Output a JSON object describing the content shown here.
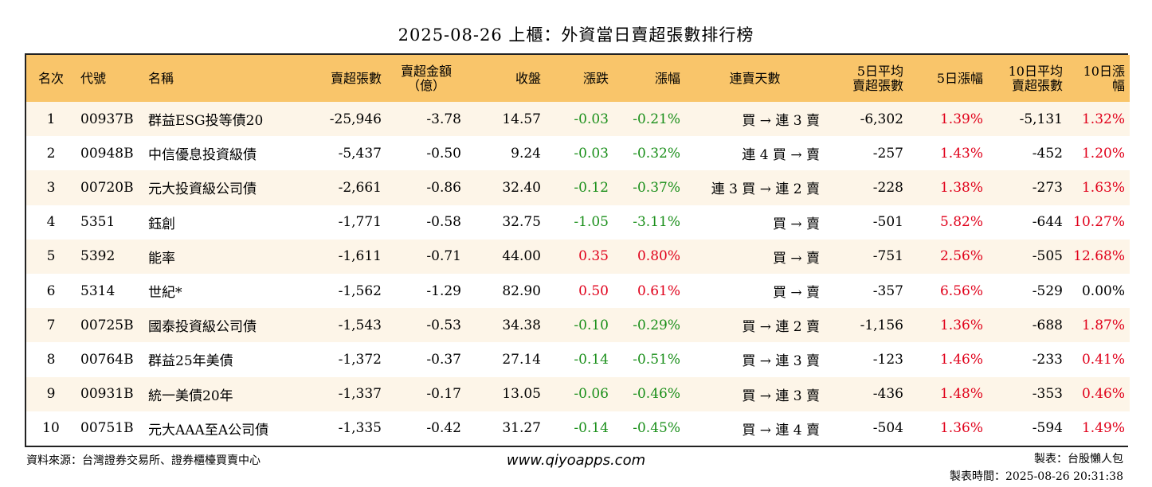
{
  "title": "2025-08-26 上櫃：外資當日賣超張數排行榜",
  "colors": {
    "header_bg": "#f9c56a",
    "row_alt": "#fdf5e8",
    "up": "#e0001a",
    "down": "#1a8f1a"
  },
  "headers": {
    "rank": "名次",
    "code": "代號",
    "name": "名稱",
    "net_sell_shares": "賣超張數",
    "net_sell_amount_l1": "賣超金額",
    "net_sell_amount_l2": "（億）",
    "close": "收盤",
    "change": "漲跌",
    "change_pct": "漲幅",
    "streak": "連賣天數",
    "avg5_l1": "5日平均",
    "avg5_l2": "賣超張數",
    "pct5": "5日漲幅",
    "avg10_l1": "10日平均",
    "avg10_l2": "賣超張數",
    "pct10": "10日漲幅"
  },
  "rows": [
    {
      "rank": "1",
      "code": "00937B",
      "name": "群益ESG投等債20",
      "shares": "-25,946",
      "amount": "-3.78",
      "close": "14.57",
      "change": "-0.03",
      "change_pct": "-0.21%",
      "streak": "買 → 連 3 賣",
      "avg5": "-6,302",
      "pct5": "1.39%",
      "avg10": "-5,131",
      "pct10": "1.32%",
      "dir": "down",
      "pct10_dir": "up"
    },
    {
      "rank": "2",
      "code": "00948B",
      "name": "中信優息投資級債",
      "shares": "-5,437",
      "amount": "-0.50",
      "close": "9.24",
      "change": "-0.03",
      "change_pct": "-0.32%",
      "streak": "連 4 買 → 賣",
      "avg5": "-257",
      "pct5": "1.43%",
      "avg10": "-452",
      "pct10": "1.20%",
      "dir": "down",
      "pct10_dir": "up"
    },
    {
      "rank": "3",
      "code": "00720B",
      "name": "元大投資級公司債",
      "shares": "-2,661",
      "amount": "-0.86",
      "close": "32.40",
      "change": "-0.12",
      "change_pct": "-0.37%",
      "streak": "連 3 買 → 連 2 賣",
      "avg5": "-228",
      "pct5": "1.38%",
      "avg10": "-273",
      "pct10": "1.63%",
      "dir": "down",
      "pct10_dir": "up"
    },
    {
      "rank": "4",
      "code": "5351",
      "name": "鈺創",
      "shares": "-1,771",
      "amount": "-0.58",
      "close": "32.75",
      "change": "-1.05",
      "change_pct": "-3.11%",
      "streak": "買 → 賣",
      "avg5": "-501",
      "pct5": "5.82%",
      "avg10": "-644",
      "pct10": "10.27%",
      "dir": "down",
      "pct10_dir": "up"
    },
    {
      "rank": "5",
      "code": "5392",
      "name": "能率",
      "shares": "-1,611",
      "amount": "-0.71",
      "close": "44.00",
      "change": "0.35",
      "change_pct": "0.80%",
      "streak": "買 → 賣",
      "avg5": "-751",
      "pct5": "2.56%",
      "avg10": "-505",
      "pct10": "12.68%",
      "dir": "up",
      "pct10_dir": "up"
    },
    {
      "rank": "6",
      "code": "5314",
      "name": "世紀*",
      "shares": "-1,562",
      "amount": "-1.29",
      "close": "82.90",
      "change": "0.50",
      "change_pct": "0.61%",
      "streak": "買 → 賣",
      "avg5": "-357",
      "pct5": "6.56%",
      "avg10": "-529",
      "pct10": "0.00%",
      "dir": "up",
      "pct10_dir": "flat"
    },
    {
      "rank": "7",
      "code": "00725B",
      "name": "國泰投資級公司債",
      "shares": "-1,543",
      "amount": "-0.53",
      "close": "34.38",
      "change": "-0.10",
      "change_pct": "-0.29%",
      "streak": "買 → 連 2 賣",
      "avg5": "-1,156",
      "pct5": "1.36%",
      "avg10": "-688",
      "pct10": "1.87%",
      "dir": "down",
      "pct10_dir": "up"
    },
    {
      "rank": "8",
      "code": "00764B",
      "name": "群益25年美債",
      "shares": "-1,372",
      "amount": "-0.37",
      "close": "27.14",
      "change": "-0.14",
      "change_pct": "-0.51%",
      "streak": "買 → 連 3 賣",
      "avg5": "-123",
      "pct5": "1.46%",
      "avg10": "-233",
      "pct10": "0.41%",
      "dir": "down",
      "pct10_dir": "up"
    },
    {
      "rank": "9",
      "code": "00931B",
      "name": "統一美債20年",
      "shares": "-1,337",
      "amount": "-0.17",
      "close": "13.05",
      "change": "-0.06",
      "change_pct": "-0.46%",
      "streak": "買 → 連 3 賣",
      "avg5": "-436",
      "pct5": "1.48%",
      "avg10": "-353",
      "pct10": "0.46%",
      "dir": "down",
      "pct10_dir": "up"
    },
    {
      "rank": "10",
      "code": "00751B",
      "name": "元大AAA至A公司債",
      "shares": "-1,335",
      "amount": "-0.42",
      "close": "31.27",
      "change": "-0.14",
      "change_pct": "-0.45%",
      "streak": "買 → 連 4 賣",
      "avg5": "-504",
      "pct5": "1.36%",
      "avg10": "-594",
      "pct10": "1.49%",
      "dir": "down",
      "pct10_dir": "up"
    }
  ],
  "footer": {
    "source": "資料來源：台灣證券交易所、證券櫃檯買賣中心",
    "website": "www.qiyoapps.com",
    "maker": "製表：台股懶人包",
    "made_time": "製表時間：2025-08-26 20:31:38"
  }
}
